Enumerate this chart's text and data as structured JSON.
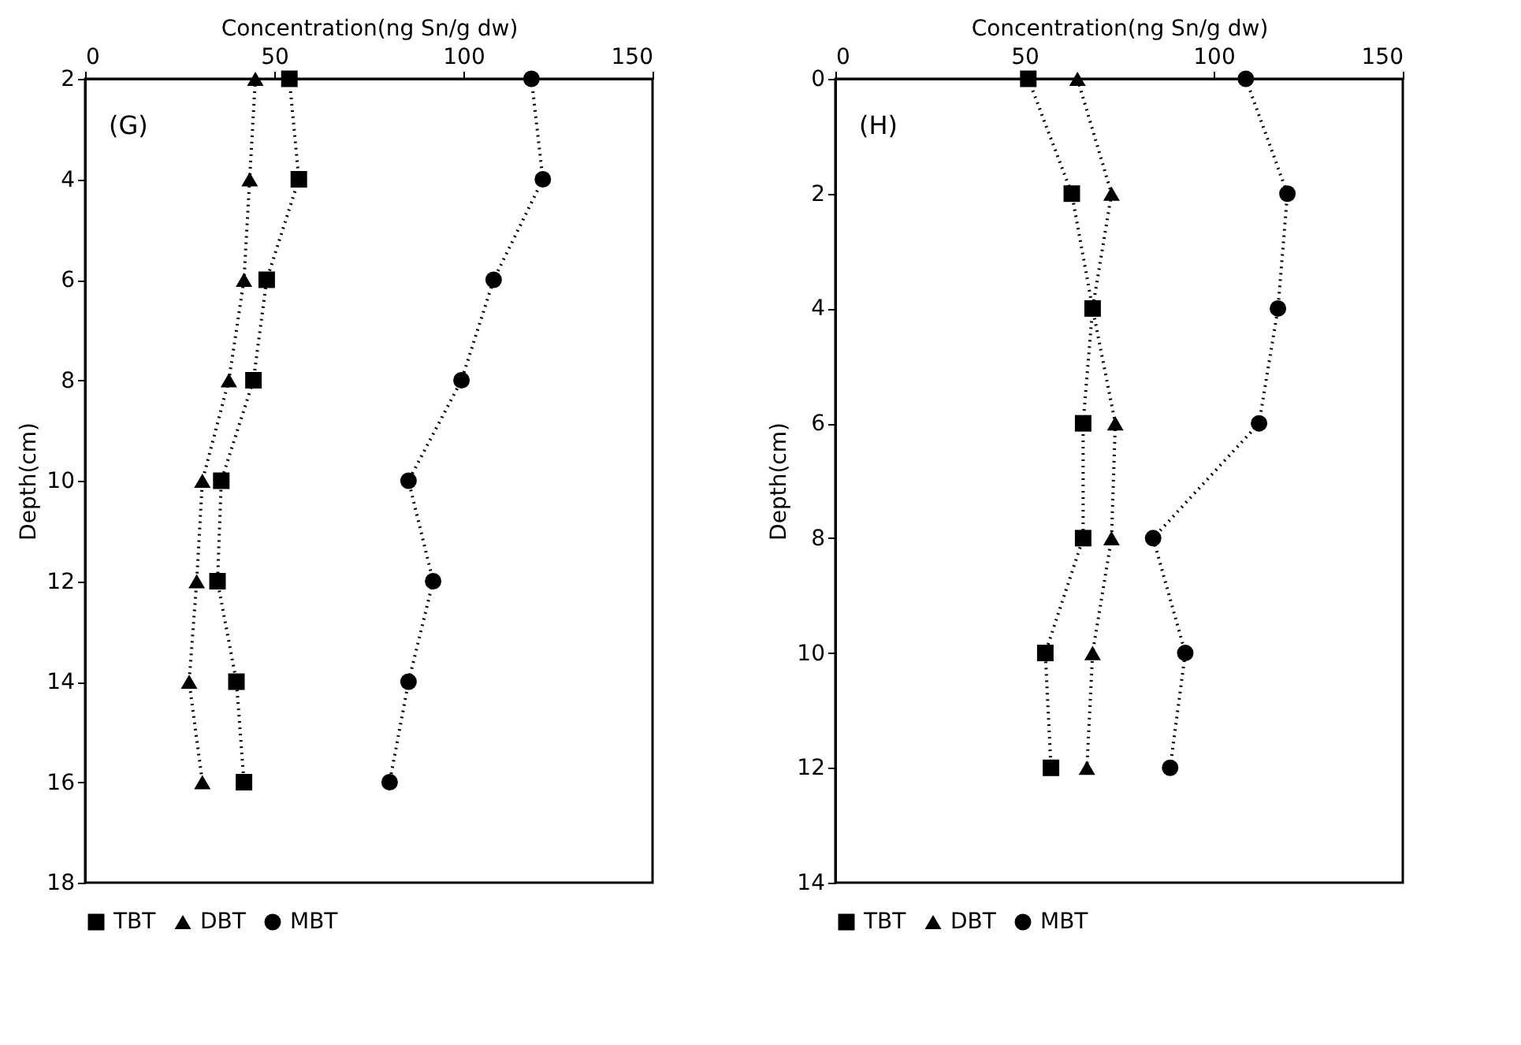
{
  "chart_data": [
    {
      "type": "line",
      "orientation": "horizontal",
      "xlabel": "Concentration(ng Sn/g dw)",
      "ylabel": "Depth(cm)",
      "x": [
        2,
        4,
        6,
        8,
        10,
        12,
        14,
        16
      ],
      "xlim": [
        0,
        150
      ],
      "xticks": [
        0,
        50,
        100,
        150
      ],
      "ylim": [
        18,
        2
      ],
      "yticks": [
        2,
        4,
        6,
        8,
        10,
        12,
        14,
        16,
        18
      ],
      "line_style": "dotted",
      "legend": "bottom",
      "annotations": [
        "(G)"
      ],
      "series": [
        {
          "name": "TBT",
          "color": "#000000",
          "marker": "square",
          "values": [
            54,
            56.5,
            48,
            44.5,
            36,
            35,
            40,
            42
          ]
        },
        {
          "name": "DBT",
          "color": "#000000",
          "marker": "triangle",
          "values": [
            45,
            43.5,
            42,
            38,
            31,
            29.5,
            27.5,
            31
          ]
        },
        {
          "name": "MBT",
          "color": "#000000",
          "marker": "circle",
          "values": [
            118,
            121,
            108,
            99.5,
            85.5,
            92,
            85.5,
            80.5
          ]
        }
      ]
    },
    {
      "type": "line",
      "orientation": "horizontal",
      "xlabel": "Concentration(ng Sn/g dw)",
      "ylabel": "Depth(cm)",
      "x": [
        0,
        2,
        4,
        6,
        8,
        10,
        12
      ],
      "xlim": [
        0,
        150
      ],
      "xticks": [
        0,
        50,
        100,
        150
      ],
      "ylim": [
        14,
        0
      ],
      "yticks": [
        0,
        2,
        4,
        6,
        8,
        10,
        12,
        14
      ],
      "line_style": "dotted",
      "legend": "bottom",
      "annotations": [
        "(H)"
      ],
      "series": [
        {
          "name": "TBT",
          "color": "#000000",
          "marker": "square",
          "values": [
            51,
            62.5,
            68,
            65.5,
            65.5,
            55.5,
            57
          ]
        },
        {
          "name": "DBT",
          "color": "#000000",
          "marker": "triangle",
          "values": [
            64,
            73,
            68,
            74,
            73,
            68,
            66.5
          ]
        },
        {
          "name": "MBT",
          "color": "#000000",
          "marker": "circle",
          "values": [
            108.5,
            119.5,
            117,
            112,
            84,
            92.5,
            88.5
          ]
        }
      ]
    }
  ]
}
